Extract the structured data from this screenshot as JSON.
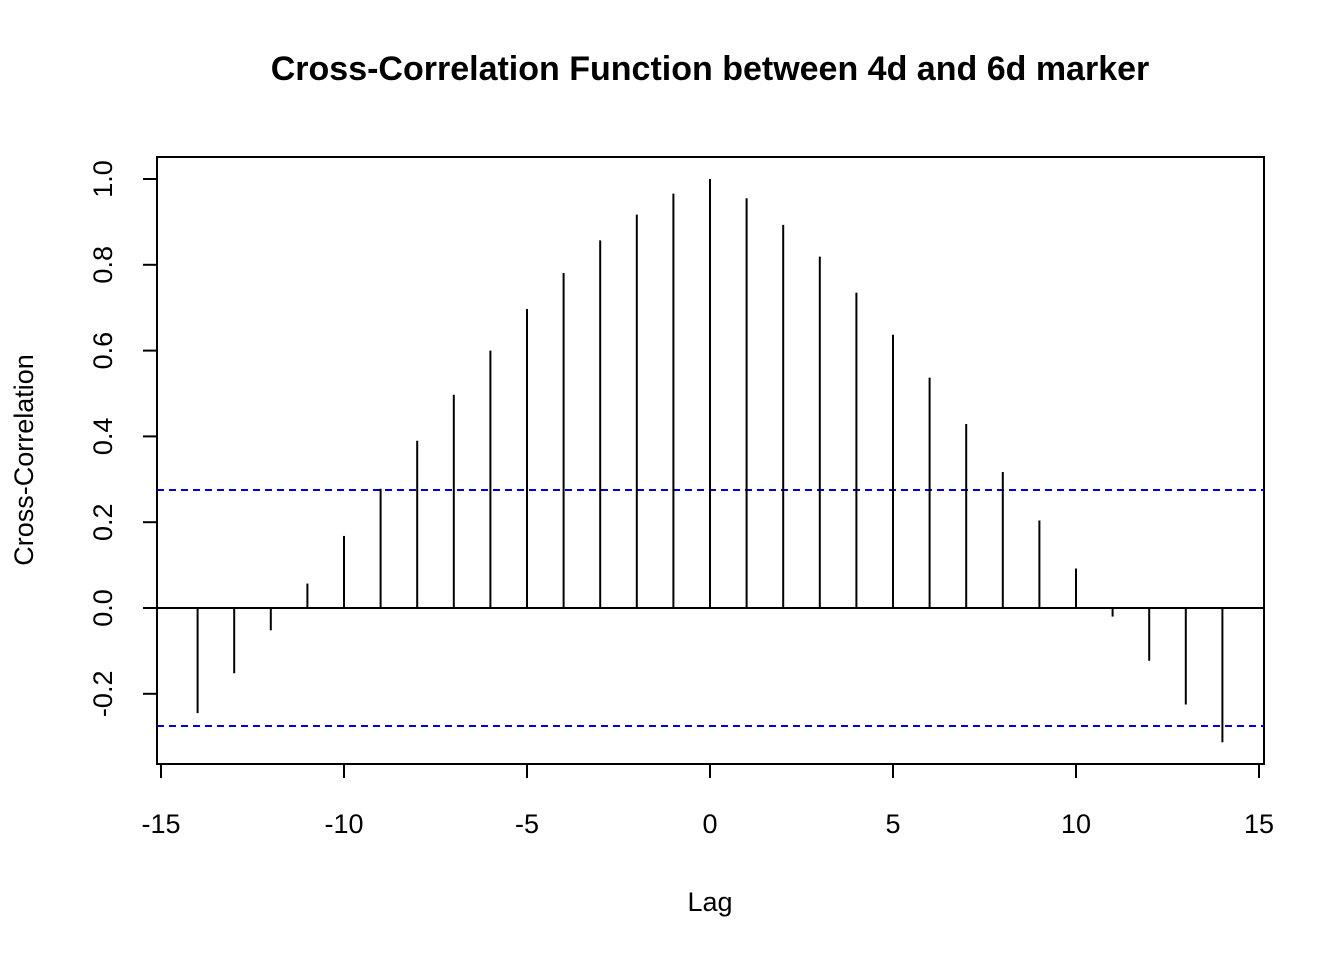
{
  "chart_data": {
    "type": "bar",
    "title": "Cross-Correlation Function between 4d and 6d marker",
    "xlabel": "Lag",
    "ylabel": "Cross-Correlation",
    "xlim": [
      -15,
      15
    ],
    "ylim": [
      -0.31,
      1.0
    ],
    "x_ticks": [
      -15,
      -10,
      -5,
      0,
      5,
      10,
      15
    ],
    "x_tick_labels": [
      "-15",
      "-10",
      "-5",
      "0",
      "5",
      "10",
      "15"
    ],
    "y_ticks": [
      -0.2,
      0.0,
      0.2,
      0.4,
      0.6,
      0.8,
      1.0
    ],
    "y_tick_labels": [
      "-0.2",
      "0.0",
      "0.2",
      "0.4",
      "0.6",
      "0.8",
      "1.0"
    ],
    "lags": [
      -14,
      -13,
      -12,
      -11,
      -10,
      -9,
      -8,
      -7,
      -6,
      -5,
      -4,
      -3,
      -2,
      -1,
      0,
      1,
      2,
      3,
      4,
      5,
      6,
      7,
      8,
      9,
      10,
      11,
      12,
      13,
      14
    ],
    "values": [
      -0.245,
      -0.152,
      -0.052,
      0.057,
      0.168,
      0.278,
      0.39,
      0.497,
      0.6,
      0.697,
      0.781,
      0.857,
      0.917,
      0.966,
      1.0,
      0.955,
      0.893,
      0.819,
      0.735,
      0.637,
      0.537,
      0.429,
      0.317,
      0.204,
      0.092,
      -0.02,
      -0.123,
      -0.225,
      -0.313
    ],
    "confidence_bounds": [
      0.275,
      -0.275
    ],
    "confidence_color": "#0000cd",
    "bar_color": "#000000",
    "grid": false,
    "legend": "none"
  }
}
